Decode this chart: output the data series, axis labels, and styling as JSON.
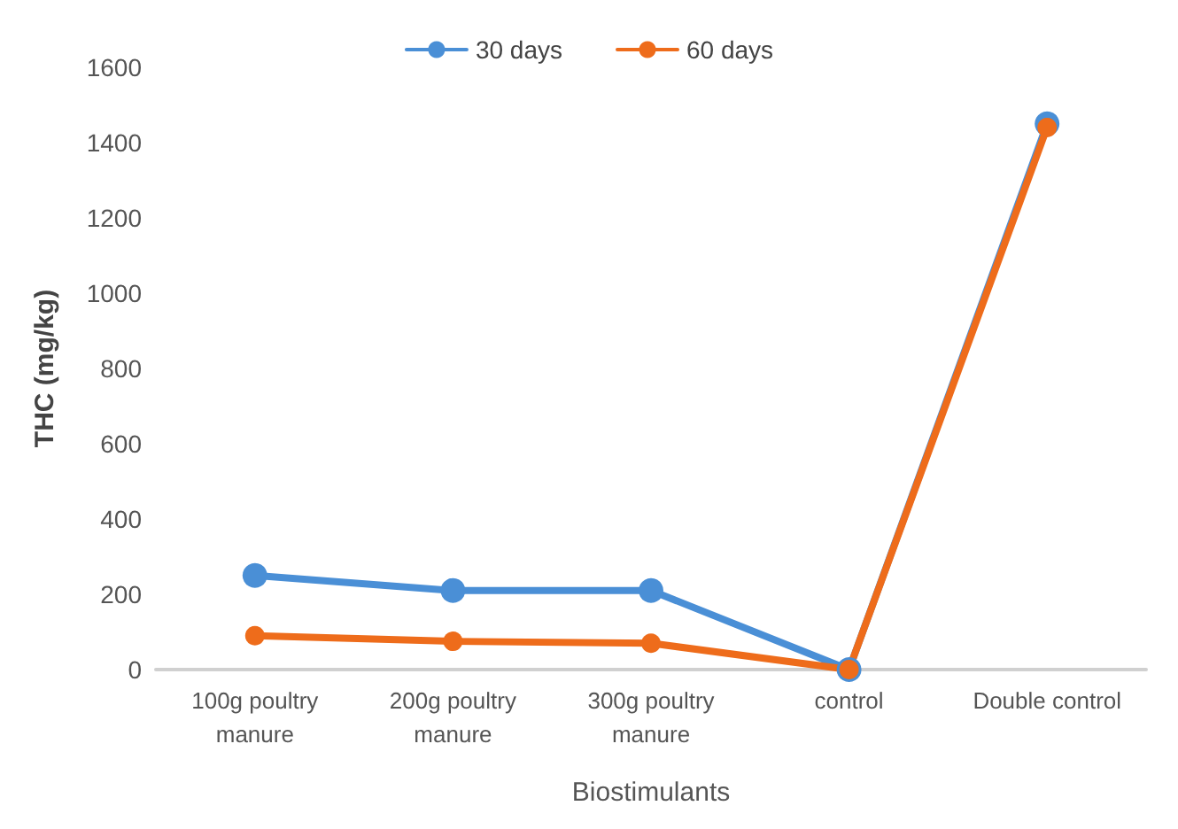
{
  "chart_data": {
    "type": "line",
    "xlabel": "Biostimulants",
    "ylabel": "THC (mg/kg)",
    "categories": [
      "100g poultry manure",
      "200g poultry manure",
      "300g poultry manure",
      "control",
      "Double control"
    ],
    "series": [
      {
        "name": "30 days",
        "color": "#4a8fd6",
        "values": [
          250,
          210,
          210,
          0,
          1450
        ]
      },
      {
        "name": "60 days",
        "color": "#ee6c1b",
        "values": [
          90,
          75,
          70,
          0,
          1440
        ]
      }
    ],
    "ylim": [
      0,
      1600
    ],
    "yticks": [
      0,
      200,
      400,
      600,
      800,
      1000,
      1200,
      1400,
      1600
    ],
    "grid": false,
    "legend": "top",
    "marker": "circle",
    "line_style": "solid"
  }
}
